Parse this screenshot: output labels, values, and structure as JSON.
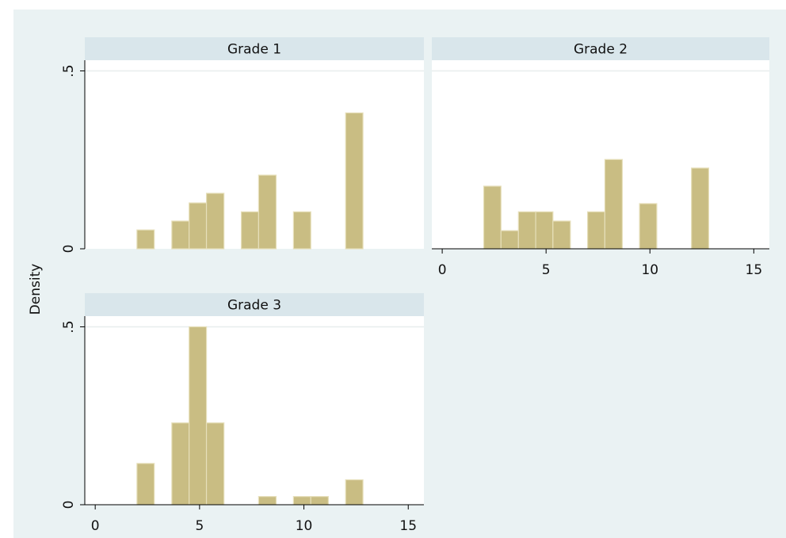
{
  "ylabel": "Density",
  "chart_data": [
    {
      "type": "histogram",
      "title": "Grade 1",
      "color": "#c9bd83",
      "edge": "#e6dfba",
      "bins": [
        2,
        2.83,
        3.67,
        4.5,
        5.33,
        6.17,
        7,
        7.83,
        8.67,
        9.5,
        10.33,
        11.17,
        12,
        12.83
      ],
      "values": [
        0.053,
        0,
        0.078,
        0.129,
        0.156,
        0,
        0.104,
        0.207,
        0,
        0.104,
        0,
        0,
        0.382
      ],
      "xlim": [
        -0.5,
        15.75
      ],
      "ylim": [
        0,
        0.53
      ],
      "xticks": [
        0,
        5,
        10,
        15
      ],
      "yticks": [
        0,
        {
          "value": 0.5,
          "label": ".5"
        }
      ],
      "show_xaxis": false,
      "show_yaxis": true,
      "grid": true
    },
    {
      "type": "histogram",
      "title": "Grade 2",
      "color": "#c9bd83",
      "edge": "#e6dfba",
      "bins": [
        2,
        2.83,
        3.67,
        4.5,
        5.33,
        6.17,
        7,
        7.83,
        8.67,
        9.5,
        10.33,
        11.17,
        12,
        12.83
      ],
      "values": [
        0.176,
        0.051,
        0.104,
        0.104,
        0.078,
        0,
        0.104,
        0.251,
        0,
        0.127,
        0,
        0,
        0.227
      ],
      "xlim": [
        -0.5,
        15.75
      ],
      "ylim": [
        0,
        0.53
      ],
      "xticks": [
        0,
        5,
        10,
        15
      ],
      "yticks": [
        0,
        {
          "value": 0.5,
          "label": ".5"
        }
      ],
      "show_xaxis": true,
      "show_yaxis": false,
      "grid": true
    },
    {
      "type": "histogram",
      "title": "Grade 3",
      "color": "#c9bd83",
      "edge": "#e6dfba",
      "bins": [
        2,
        2.83,
        3.67,
        4.5,
        5.33,
        6.17,
        7,
        7.83,
        8.67,
        9.5,
        10.33,
        11.17,
        12,
        12.83
      ],
      "values": [
        0.116,
        0,
        0.23,
        0.5,
        0.23,
        0,
        0,
        0.023,
        0,
        0.023,
        0.023,
        0,
        0.07
      ],
      "xlim": [
        -0.5,
        15.75
      ],
      "ylim": [
        0,
        0.53
      ],
      "xticks": [
        0,
        5,
        10,
        15
      ],
      "yticks": [
        0,
        {
          "value": 0.5,
          "label": ".5"
        }
      ],
      "show_xaxis": true,
      "show_yaxis": true,
      "grid": true
    }
  ]
}
